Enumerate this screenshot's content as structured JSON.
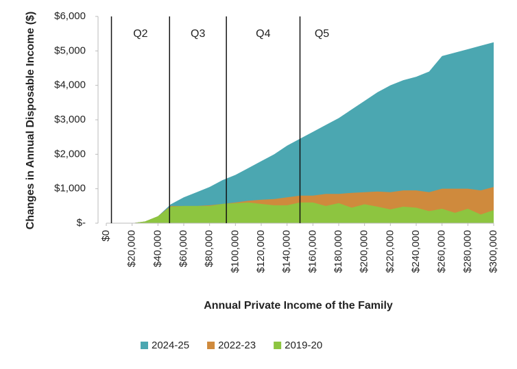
{
  "chart_data": {
    "type": "area",
    "x_label": "Annual Private Income of the Family",
    "y_label": "Changes in Annual Disposable Income ($)",
    "x": [
      0,
      10000,
      20000,
      30000,
      40000,
      50000,
      60000,
      70000,
      80000,
      90000,
      100000,
      110000,
      120000,
      130000,
      140000,
      150000,
      160000,
      170000,
      180000,
      190000,
      200000,
      210000,
      220000,
      230000,
      240000,
      250000,
      260000,
      270000,
      280000,
      290000,
      300000
    ],
    "series": [
      {
        "name": "2024-25",
        "color": "#4ba7b1",
        "values": [
          0,
          0,
          0,
          50,
          200,
          550,
          750,
          900,
          1050,
          1250,
          1400,
          1600,
          1800,
          2000,
          2250,
          2450,
          2650,
          2850,
          3050,
          3300,
          3550,
          3800,
          4000,
          4150,
          4250,
          4400,
          4850,
          4950,
          5050,
          5150,
          5250
        ]
      },
      {
        "name": "2022-23",
        "color": "#cf8a3d",
        "values": [
          0,
          0,
          0,
          50,
          200,
          500,
          500,
          500,
          520,
          560,
          600,
          650,
          680,
          700,
          750,
          800,
          800,
          850,
          850,
          880,
          900,
          920,
          900,
          950,
          950,
          900,
          1000,
          1000,
          1000,
          950,
          1050
        ]
      },
      {
        "name": "2019-20",
        "color": "#8dc540",
        "values": [
          0,
          0,
          0,
          50,
          200,
          480,
          500,
          500,
          500,
          560,
          580,
          600,
          560,
          520,
          520,
          600,
          600,
          500,
          580,
          450,
          550,
          480,
          400,
          480,
          450,
          350,
          420,
          300,
          420,
          250,
          380
        ]
      }
    ],
    "quintile_lines": [
      4000,
      49000,
      93000,
      150000
    ],
    "quintile_labels": [
      "Q2",
      "Q3",
      "Q4",
      "Q5"
    ],
    "xlim": [
      0,
      300000
    ],
    "xticks": [
      {
        "value": 0,
        "label": "$0"
      },
      {
        "value": 20000,
        "label": "$20,000"
      },
      {
        "value": 40000,
        "label": "$40,000"
      },
      {
        "value": 60000,
        "label": "$60,000"
      },
      {
        "value": 80000,
        "label": "$80,000"
      },
      {
        "value": 100000,
        "label": "$100,000"
      },
      {
        "value": 120000,
        "label": "$120,000"
      },
      {
        "value": 140000,
        "label": "$140,000"
      },
      {
        "value": 160000,
        "label": "$160,000"
      },
      {
        "value": 180000,
        "label": "$180,000"
      },
      {
        "value": 200000,
        "label": "$200,000"
      },
      {
        "value": 220000,
        "label": "$220,000"
      },
      {
        "value": 240000,
        "label": "$240,000"
      },
      {
        "value": 260000,
        "label": "$260,000"
      },
      {
        "value": 280000,
        "label": "$280,000"
      },
      {
        "value": 300000,
        "label": "$300,000"
      }
    ],
    "ylim": [
      0,
      6000
    ],
    "yticks": [
      {
        "value": 0,
        "label": "$-"
      },
      {
        "value": 1000,
        "label": "$1,000"
      },
      {
        "value": 2000,
        "label": "$2,000"
      },
      {
        "value": 3000,
        "label": "$3,000"
      },
      {
        "value": 4000,
        "label": "$4,000"
      },
      {
        "value": 5000,
        "label": "$5,000"
      },
      {
        "value": 6000,
        "label": "$6,000"
      }
    ]
  }
}
